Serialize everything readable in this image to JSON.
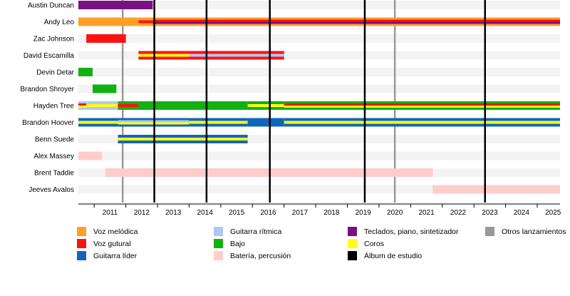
{
  "chart_data": {
    "type": "timeline",
    "x_range": [
      2010.5,
      2025.72
    ],
    "years": [
      2011,
      2012,
      2013,
      2014,
      2015,
      2016,
      2017,
      2018,
      2019,
      2020,
      2021,
      2022,
      2023,
      2024,
      2025
    ],
    "other_releases": [
      2011.9,
      2020.5
    ],
    "studio_albums": [
      2012.9,
      2014.55,
      2016.55,
      2019.55,
      2023.35
    ],
    "members": [
      {
        "name": "Austin Duncan",
        "bars": [
          {
            "start": 2010.5,
            "end": 2012.85,
            "roles": [
              "keys"
            ]
          }
        ]
      },
      {
        "name": "Andy Leo",
        "bars": [
          {
            "start": 2010.5,
            "end": 2012.4,
            "roles": [
              "lead_vocals"
            ]
          },
          {
            "start": 2012.4,
            "end": 2012.85,
            "roles": [
              "lead_vocals",
              "unclean"
            ]
          },
          {
            "start": 2012.85,
            "end": 2025.72,
            "roles": [
              "lead_vocals",
              "unclean",
              "keys"
            ]
          }
        ]
      },
      {
        "name": "Zac Johnson",
        "bars": [
          {
            "start": 2010.75,
            "end": 2012.0,
            "roles": [
              "unclean"
            ]
          }
        ]
      },
      {
        "name": "David Escamilla",
        "bars": [
          {
            "start": 2012.4,
            "end": 2014.0,
            "roles": [
              "unclean",
              "backing"
            ]
          },
          {
            "start": 2014.0,
            "end": 2017.0,
            "roles": [
              "unclean",
              "rhythm"
            ]
          }
        ]
      },
      {
        "name": "Devin Detar",
        "bars": [
          {
            "start": 2010.5,
            "end": 2010.95,
            "roles": [
              "bass"
            ]
          }
        ]
      },
      {
        "name": "Brandon Shroyer",
        "bars": [
          {
            "start": 2010.95,
            "end": 2011.7,
            "roles": [
              "bass"
            ]
          }
        ]
      },
      {
        "name": "Hayden Tree",
        "bars": [
          {
            "start": 2010.5,
            "end": 2010.75,
            "roles": [
              "rhythm",
              "unclean",
              "backing"
            ]
          },
          {
            "start": 2010.75,
            "end": 2011.75,
            "roles": [
              "rhythm",
              "backing"
            ]
          },
          {
            "start": 2011.75,
            "end": 2012.4,
            "roles": [
              "bass",
              "unclean"
            ]
          },
          {
            "start": 2012.4,
            "end": 2015.85,
            "roles": [
              "bass"
            ]
          },
          {
            "start": 2015.85,
            "end": 2017.0,
            "roles": [
              "bass",
              "backing"
            ]
          },
          {
            "start": 2017.0,
            "end": 2025.72,
            "roles": [
              "bass",
              "unclean",
              "backing"
            ]
          }
        ]
      },
      {
        "name": "Brandon Hoover",
        "bars": [
          {
            "start": 2010.5,
            "end": 2011.75,
            "roles": [
              "lead",
              "backing"
            ]
          },
          {
            "start": 2011.75,
            "end": 2014.0,
            "roles": [
              "lead",
              "rhythm",
              "backing"
            ]
          },
          {
            "start": 2014.0,
            "end": 2015.85,
            "roles": [
              "lead",
              "backing"
            ]
          },
          {
            "start": 2015.85,
            "end": 2017.0,
            "roles": [
              "lead"
            ]
          },
          {
            "start": 2017.0,
            "end": 2025.72,
            "roles": [
              "lead",
              "backing"
            ]
          }
        ]
      },
      {
        "name": "Benn Suede",
        "bars": [
          {
            "start": 2011.75,
            "end": 2015.85,
            "roles": [
              "lead",
              "backing"
            ]
          }
        ]
      },
      {
        "name": "Alex Massey",
        "bars": [
          {
            "start": 2010.5,
            "end": 2011.25,
            "roles": [
              "drums"
            ]
          }
        ]
      },
      {
        "name": "Brent Taddie",
        "bars": [
          {
            "start": 2011.35,
            "end": 2021.7,
            "roles": [
              "drums"
            ]
          }
        ]
      },
      {
        "name": "Jeeves Avalos",
        "bars": [
          {
            "start": 2021.7,
            "end": 2025.72,
            "roles": [
              "drums"
            ]
          }
        ]
      }
    ],
    "legend": [
      {
        "key": "lead_vocals",
        "label": "Voz melódica",
        "color": "#FF9F28"
      },
      {
        "key": "rhythm",
        "label": "Guitarra rítmica",
        "color": "#B0C8F0"
      },
      {
        "key": "keys",
        "label": "Teclados, piano, sintetizador",
        "color": "#7A1180"
      },
      {
        "key": "other",
        "label": "Otros lanzamientos",
        "color": "#999999"
      },
      {
        "key": "unclean",
        "label": "Voz gutural",
        "color": "#FF1111"
      },
      {
        "key": "bass",
        "label": "Bajo",
        "color": "#11B111"
      },
      {
        "key": "backing",
        "label": "Coros",
        "color": "#FFFF11"
      },
      {
        "key": "lead",
        "label": "Guitarra líder",
        "color": "#1166BB"
      },
      {
        "key": "drums",
        "label": "Batería, percusión",
        "color": "#FFCCCC"
      },
      {
        "key": "album",
        "label": "Álbum de estudio",
        "color": "#000000"
      }
    ]
  }
}
